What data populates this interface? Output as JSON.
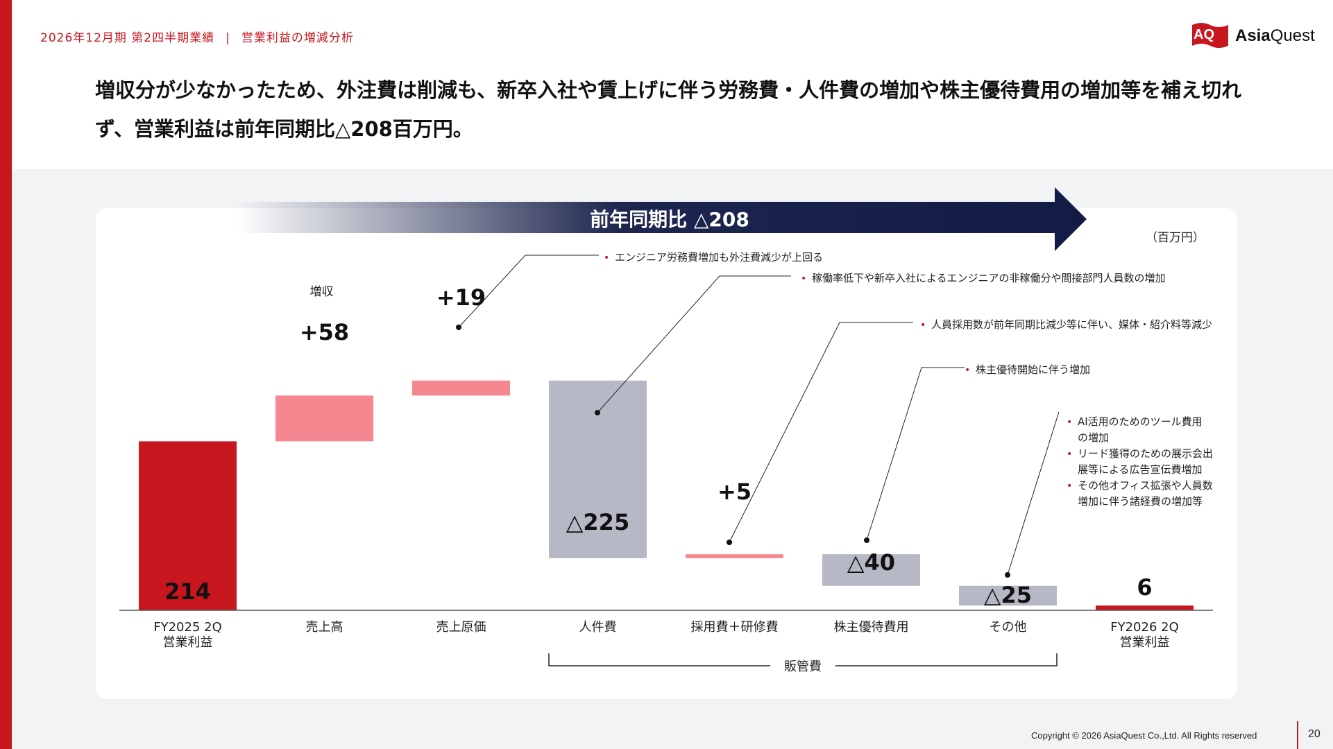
{
  "header": {
    "period": "2026年12月期 第2四半期業績",
    "separator": "|",
    "section": "営業利益の増減分析"
  },
  "logo": {
    "mark": "AQ",
    "word_bold": "Asia",
    "word_regular": "Quest"
  },
  "headline": "増収分が少なかったため、外注費は削減も、新卒入社や賃上げに伴う労務費・人件費の増加や株主優待費用の増加等を補え切れず、営業利益は前年同期比△208百万円。",
  "colors": {
    "brand_red": "#c8161e",
    "increase_pink": "#f4878f",
    "decrease_gray": "#b6b8c5",
    "arrow_navy": "#121b45",
    "bullet_red": "#c8161e"
  },
  "chart_data": {
    "type": "bar",
    "subtype": "waterfall",
    "unit": "（百万円）",
    "banner": "前年同期比 △208",
    "ylim": [
      0,
      290
    ],
    "categories": [
      {
        "label": "FY2025 2Q",
        "sublabel": "営業利益",
        "base": 0,
        "top": 214,
        "kind": "total",
        "value_label": "214"
      },
      {
        "label": "売上高",
        "base": 214,
        "top": 272,
        "kind": "increase",
        "value_label": "+58",
        "note": "増収"
      },
      {
        "label": "売上原価",
        "base": 272,
        "top": 291,
        "kind": "increase",
        "value_label": "+19"
      },
      {
        "label": "人件費",
        "base": 66,
        "top": 291,
        "kind": "decrease",
        "value_label": "△225"
      },
      {
        "label": "採用費＋研修費",
        "base": 66,
        "top": 71,
        "kind": "increase",
        "value_label": "+5"
      },
      {
        "label": "株主優待費用",
        "base": 31,
        "top": 71,
        "kind": "decrease",
        "value_label": "△40"
      },
      {
        "label": "その他",
        "base": 6,
        "top": 31,
        "kind": "decrease",
        "value_label": "△25"
      },
      {
        "label": "FY2026 2Q",
        "sublabel": "営業利益",
        "base": 0,
        "top": 6,
        "kind": "total",
        "value_label": "6"
      }
    ],
    "bracket": {
      "label": "販管費",
      "from": 3,
      "to": 6
    },
    "annotations": [
      {
        "target": 2,
        "lines": [
          "エンジニア労務費増加も外注費減少が上回る"
        ]
      },
      {
        "target": 3,
        "lines": [
          "稼働率低下や新卒入社によるエンジニアの非稼働分や間接部門人員数の増加"
        ]
      },
      {
        "target": 4,
        "lines": [
          "人員採用数が前年同期比減少等に伴い、媒体・紹介料等減少"
        ]
      },
      {
        "target": 5,
        "lines": [
          "株主優待開始に伴う増加"
        ]
      },
      {
        "target": 6,
        "bullets": [
          [
            "AI活用のためのツール費用",
            "の増加"
          ],
          [
            "リード獲得のための展示会出",
            "展等による広告宣伝費増加"
          ],
          [
            "その他オフィス拡張や人員数",
            "増加に伴う諸経費の増加等"
          ]
        ]
      }
    ]
  },
  "footer": {
    "copyright": "Copyright © 2026 AsiaQuest Co.,Ltd. All Rights reserved",
    "page": "20"
  }
}
